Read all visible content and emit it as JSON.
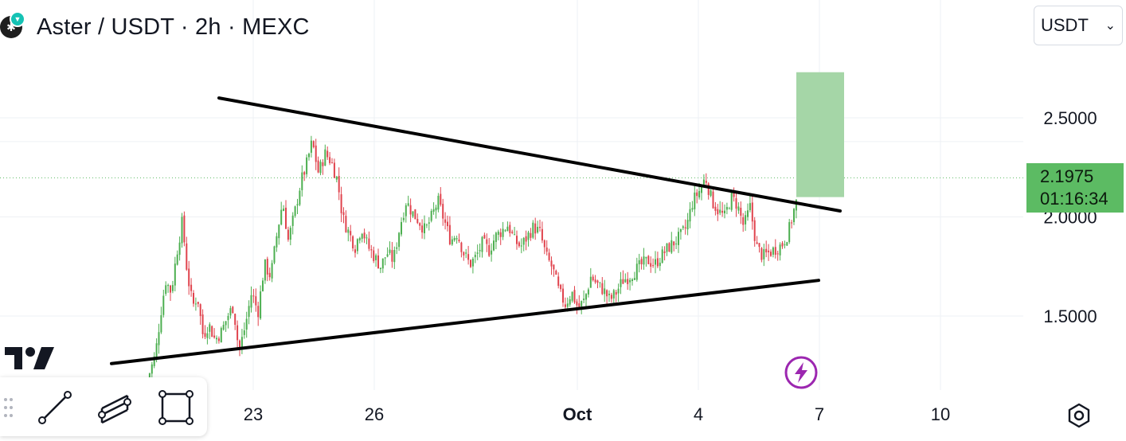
{
  "header": {
    "title": "Aster / USDT · 2h · MEXC",
    "logo_icon": "aster-coin-icon",
    "badge_icon": "mexc-exchange-badge-icon"
  },
  "currency_select": {
    "value": "USDT",
    "icon": "chevron-down-icon"
  },
  "price_label": {
    "price": "2.1975",
    "countdown": "01:16:34"
  },
  "colors": {
    "up": "#4caf50",
    "down": "#e0434d",
    "trendline": "#000000",
    "target_box": "#a5d6a7",
    "price_tag": "#5cbb63",
    "grid": "#eef0f4",
    "current_price_line": "#5cbb63"
  },
  "toolbar": {
    "tools": [
      {
        "icon": "trend-line-tool-icon"
      },
      {
        "icon": "parallel-channel-tool-icon"
      },
      {
        "icon": "rectangle-tool-icon"
      }
    ]
  },
  "chart_data": {
    "type": "candlestick",
    "title": "Aster / USDT · 2h · MEXC",
    "x_tick_labels": [
      "23",
      "26",
      "Oct",
      "4",
      "7",
      "10"
    ],
    "y_tick_labels": [
      "2.5000",
      "2.0000",
      "1.5000"
    ],
    "ylim": [
      1.13,
      2.78
    ],
    "x_domain": [
      0,
      1100
    ],
    "x_ticks": [
      318,
      470,
      725,
      877,
      1029,
      1181
    ],
    "y_ticks": [
      2.5,
      2.0,
      1.5
    ],
    "current_price": 2.1975,
    "grid": true,
    "legend": "none",
    "closes_anchor_points": [
      [
        185,
        1.18
      ],
      [
        195,
        1.3
      ],
      [
        202,
        1.52
      ],
      [
        208,
        1.68
      ],
      [
        215,
        1.62
      ],
      [
        222,
        1.82
      ],
      [
        229,
        1.98
      ],
      [
        235,
        1.72
      ],
      [
        242,
        1.55
      ],
      [
        248,
        1.6
      ],
      [
        255,
        1.4
      ],
      [
        262,
        1.46
      ],
      [
        270,
        1.38
      ],
      [
        278,
        1.42
      ],
      [
        286,
        1.5
      ],
      [
        293,
        1.55
      ],
      [
        300,
        1.32
      ],
      [
        308,
        1.45
      ],
      [
        316,
        1.62
      ],
      [
        324,
        1.52
      ],
      [
        332,
        1.76
      ],
      [
        340,
        1.7
      ],
      [
        348,
        1.92
      ],
      [
        355,
        2.08
      ],
      [
        362,
        1.88
      ],
      [
        370,
        2.02
      ],
      [
        378,
        2.18
      ],
      [
        384,
        2.25
      ],
      [
        392,
        2.38
      ],
      [
        400,
        2.22
      ],
      [
        408,
        2.32
      ],
      [
        416,
        2.28
      ],
      [
        424,
        2.18
      ],
      [
        430,
        2.0
      ],
      [
        438,
        1.92
      ],
      [
        446,
        1.85
      ],
      [
        454,
        1.95
      ],
      [
        462,
        1.85
      ],
      [
        470,
        1.8
      ],
      [
        478,
        1.75
      ],
      [
        486,
        1.82
      ],
      [
        494,
        1.78
      ],
      [
        502,
        1.95
      ],
      [
        510,
        2.08
      ],
      [
        518,
        2.02
      ],
      [
        526,
        1.98
      ],
      [
        534,
        1.93
      ],
      [
        542,
        2.0
      ],
      [
        550,
        2.08
      ],
      [
        558,
        1.98
      ],
      [
        566,
        1.88
      ],
      [
        574,
        1.92
      ],
      [
        582,
        1.82
      ],
      [
        590,
        1.76
      ],
      [
        598,
        1.8
      ],
      [
        606,
        1.87
      ],
      [
        614,
        1.83
      ],
      [
        622,
        1.9
      ],
      [
        630,
        1.93
      ],
      [
        638,
        1.96
      ],
      [
        646,
        1.88
      ],
      [
        654,
        1.85
      ],
      [
        662,
        1.9
      ],
      [
        670,
        1.95
      ],
      [
        678,
        1.92
      ],
      [
        686,
        1.8
      ],
      [
        694,
        1.74
      ],
      [
        702,
        1.62
      ],
      [
        710,
        1.56
      ],
      [
        718,
        1.62
      ],
      [
        726,
        1.54
      ],
      [
        734,
        1.58
      ],
      [
        742,
        1.7
      ],
      [
        750,
        1.66
      ],
      [
        758,
        1.63
      ],
      [
        766,
        1.58
      ],
      [
        774,
        1.62
      ],
      [
        782,
        1.68
      ],
      [
        790,
        1.7
      ],
      [
        798,
        1.73
      ],
      [
        806,
        1.76
      ],
      [
        814,
        1.78
      ],
      [
        822,
        1.76
      ],
      [
        830,
        1.8
      ],
      [
        838,
        1.84
      ],
      [
        846,
        1.87
      ],
      [
        854,
        1.9
      ],
      [
        862,
        1.95
      ],
      [
        870,
        2.08
      ],
      [
        878,
        2.13
      ],
      [
        886,
        2.2
      ],
      [
        894,
        2.08
      ],
      [
        902,
        2.03
      ],
      [
        910,
        2.0
      ],
      [
        918,
        2.1
      ],
      [
        926,
        2.06
      ],
      [
        934,
        1.95
      ],
      [
        942,
        2.05
      ],
      [
        950,
        1.85
      ],
      [
        958,
        1.8
      ],
      [
        966,
        1.82
      ],
      [
        974,
        1.84
      ],
      [
        982,
        1.86
      ],
      [
        990,
        1.92
      ],
      [
        996,
        2.02
      ],
      [
        1002,
        2.1
      ]
    ],
    "trendlines": [
      {
        "name": "upper",
        "from": [
          275,
          2.6
        ],
        "to": [
          1055,
          2.03
        ]
      },
      {
        "name": "lower",
        "from": [
          140,
          1.26
        ],
        "to": [
          1028,
          1.68
        ]
      }
    ],
    "target_zone": {
      "x_start": 1000,
      "x_end": 1060,
      "y_low": 2.1,
      "y_high": 2.73
    }
  }
}
